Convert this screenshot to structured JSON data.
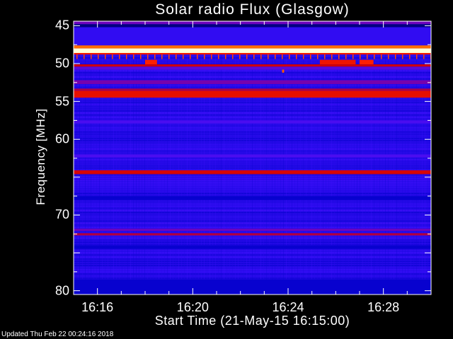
{
  "chart_data": {
    "type": "heatmap",
    "title": "Solar radio Flux (Glasgow)",
    "xlabel": "Start Time (21-May-15 16:15:00)",
    "ylabel": "Frequency [MHz]",
    "xlim": [
      "16:15:00",
      "16:30:00"
    ],
    "ylim": [
      80.5,
      44.4
    ],
    "y_inverted": true,
    "x_ticks": [
      "16:16",
      "16:20",
      "16:24",
      "16:28"
    ],
    "y_ticks": [
      "45",
      "50",
      "55",
      "60",
      "70",
      "80"
    ],
    "colormap": [
      "#000000",
      "#0000c8",
      "#4010ff",
      "#8000a0",
      "#d00000",
      "#ff2000",
      "#ffa000",
      "#ffff80",
      "#ffffff"
    ],
    "background_level": 0.2,
    "bands": [
      {
        "from_mhz": 44.4,
        "to_mhz": 44.8,
        "level": 0.34
      },
      {
        "from_mhz": 44.8,
        "to_mhz": 45.2,
        "level": 0.08
      },
      {
        "from_mhz": 45.2,
        "to_mhz": 47.6,
        "level": 0.22
      },
      {
        "from_mhz": 47.6,
        "to_mhz": 48.0,
        "level": 0.7
      },
      {
        "from_mhz": 48.0,
        "to_mhz": 48.6,
        "level": 0.96
      },
      {
        "from_mhz": 48.6,
        "to_mhz": 48.8,
        "level": 0.6
      },
      {
        "from_mhz": 50.1,
        "to_mhz": 50.4,
        "level": 0.5
      },
      {
        "from_mhz": 50.4,
        "to_mhz": 50.8,
        "level": 0.3
      },
      {
        "from_mhz": 52.2,
        "to_mhz": 52.7,
        "level": 0.36
      },
      {
        "from_mhz": 53.3,
        "to_mhz": 53.6,
        "level": 0.44
      },
      {
        "from_mhz": 53.6,
        "to_mhz": 54.5,
        "level": 0.56
      },
      {
        "from_mhz": 57.5,
        "to_mhz": 57.9,
        "level": 0.27
      },
      {
        "from_mhz": 62.0,
        "to_mhz": 62.4,
        "level": 0.27
      },
      {
        "from_mhz": 64.1,
        "to_mhz": 64.6,
        "level": 0.52
      },
      {
        "from_mhz": 67.5,
        "to_mhz": 68.0,
        "level": 0.14
      },
      {
        "from_mhz": 71.8,
        "to_mhz": 72.1,
        "level": 0.34
      },
      {
        "from_mhz": 72.4,
        "to_mhz": 72.7,
        "level": 0.45
      },
      {
        "from_mhz": 74.0,
        "to_mhz": 74.5,
        "level": 0.14
      },
      {
        "from_mhz": 78.5,
        "to_mhz": 80.5,
        "level": 0.14
      }
    ],
    "bursts": [
      {
        "start": "16:18:00",
        "end": "16:18:30",
        "from_mhz": 49.5,
        "to_mhz": 50.1,
        "level": 0.62
      },
      {
        "start": "16:25:20",
        "end": "16:26:50",
        "from_mhz": 49.5,
        "to_mhz": 50.1,
        "level": 0.58
      },
      {
        "start": "16:27:00",
        "end": "16:27:35",
        "from_mhz": 49.5,
        "to_mhz": 50.1,
        "level": 0.62
      },
      {
        "start": "16:23:45",
        "end": "16:23:50",
        "from_mhz": 50.8,
        "to_mhz": 51.2,
        "level": 0.68
      }
    ]
  },
  "footer": "Updated Thu Feb 22 00:24:16 2018"
}
